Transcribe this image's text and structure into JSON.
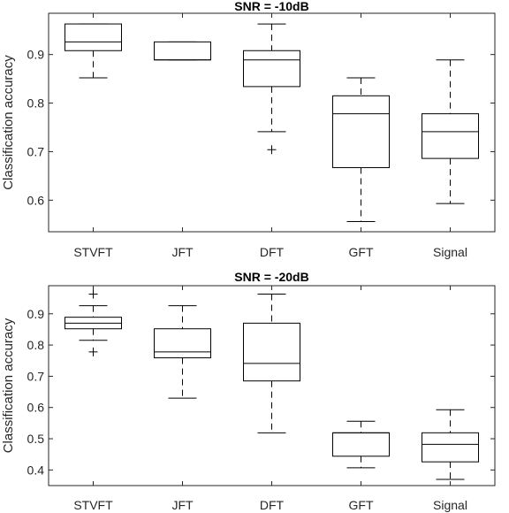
{
  "chart_data": [
    {
      "type": "box",
      "title": "SNR = -10dB",
      "ylabel": "Classification accuracy",
      "xlabel": "",
      "categories": [
        "STVFT",
        "JFT",
        "DFT",
        "GFT",
        "Signal"
      ],
      "ylim": [
        0.535,
        0.985
      ],
      "yticks": [
        0.6,
        0.7,
        0.8,
        0.9
      ],
      "ytick_labels": [
        "0.6",
        "0.7",
        "0.8",
        "0.9"
      ],
      "grid": false,
      "boxes": [
        {
          "category": "STVFT",
          "min": 0.852,
          "q1": 0.908,
          "median": 0.926,
          "q3": 0.963,
          "max": 0.963,
          "outliers": []
        },
        {
          "category": "JFT",
          "min": 0.889,
          "q1": 0.889,
          "median": 0.889,
          "q3": 0.926,
          "max": 0.926,
          "outliers": []
        },
        {
          "category": "DFT",
          "min": 0.741,
          "q1": 0.834,
          "median": 0.889,
          "q3": 0.908,
          "max": 0.963,
          "outliers": [
            0.704
          ]
        },
        {
          "category": "GFT",
          "min": 0.556,
          "q1": 0.667,
          "median": 0.778,
          "q3": 0.815,
          "max": 0.852,
          "outliers": []
        },
        {
          "category": "Signal",
          "min": 0.593,
          "q1": 0.686,
          "median": 0.741,
          "q3": 0.778,
          "max": 0.889,
          "outliers": []
        }
      ]
    },
    {
      "type": "box",
      "title": "SNR = -20dB",
      "ylabel": "Classification accuracy",
      "xlabel": "",
      "categories": [
        "STVFT",
        "JFT",
        "DFT",
        "GFT",
        "Signal"
      ],
      "ylim": [
        0.35,
        0.99
      ],
      "yticks": [
        0.4,
        0.5,
        0.6,
        0.7,
        0.8,
        0.9
      ],
      "ytick_labels": [
        "0.4",
        "0.5",
        "0.6",
        "0.7",
        "0.8",
        "0.9"
      ],
      "grid": false,
      "boxes": [
        {
          "category": "STVFT",
          "min": 0.815,
          "q1": 0.852,
          "median": 0.87,
          "q3": 0.889,
          "max": 0.926,
          "outliers": [
            0.963,
            0.778
          ]
        },
        {
          "category": "JFT",
          "min": 0.63,
          "q1": 0.759,
          "median": 0.778,
          "q3": 0.852,
          "max": 0.926,
          "outliers": []
        },
        {
          "category": "DFT",
          "min": 0.519,
          "q1": 0.685,
          "median": 0.741,
          "q3": 0.87,
          "max": 0.963,
          "outliers": []
        },
        {
          "category": "GFT",
          "min": 0.407,
          "q1": 0.444,
          "median": 0.519,
          "q3": 0.519,
          "max": 0.556,
          "outliers": []
        },
        {
          "category": "Signal",
          "min": 0.37,
          "q1": 0.426,
          "median": 0.482,
          "q3": 0.519,
          "max": 0.593,
          "outliers": []
        }
      ]
    }
  ]
}
